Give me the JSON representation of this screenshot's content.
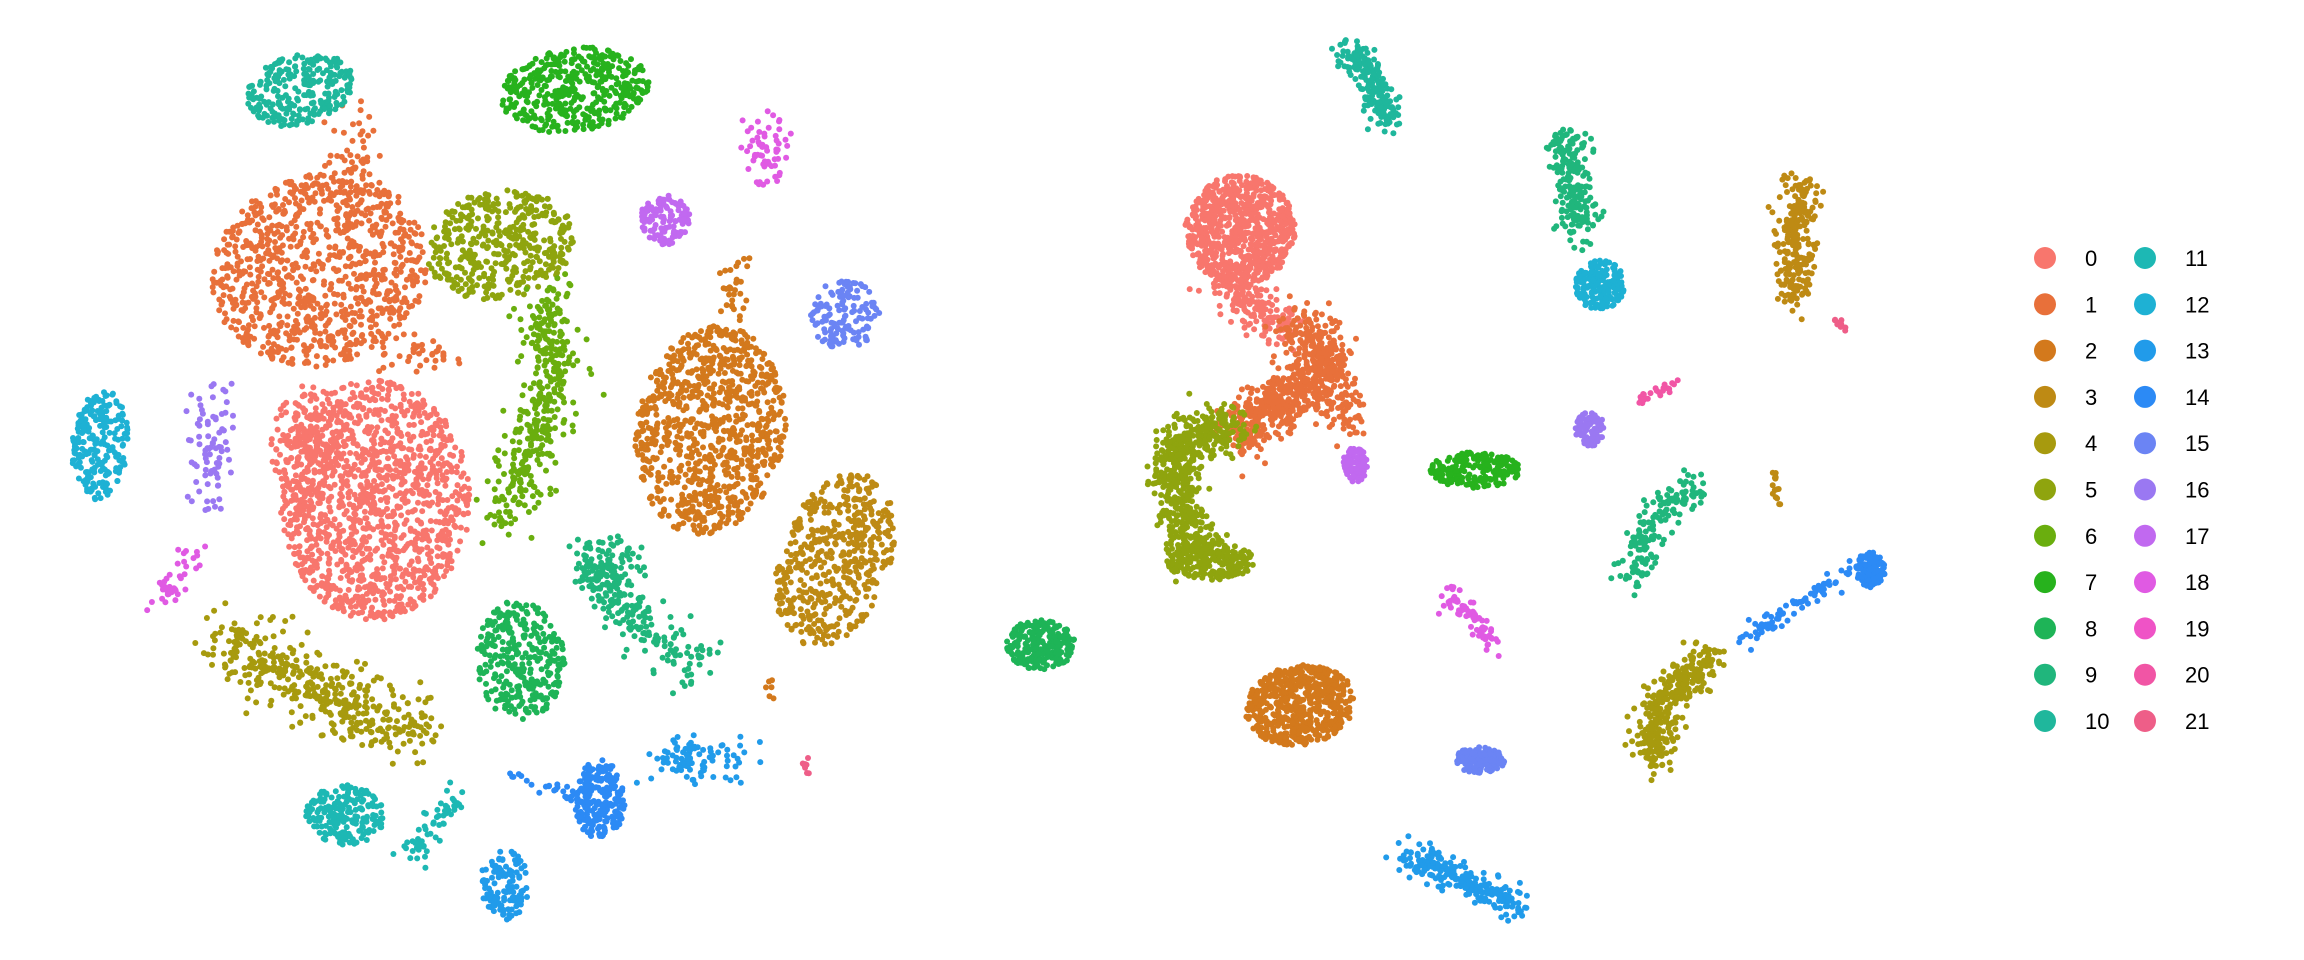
{
  "chart_data": [
    {
      "type": "scatter",
      "title": "",
      "xlabel": "",
      "ylabel": "",
      "grid": false,
      "axes_visible": false,
      "description_role": "embedding-left"
    },
    {
      "type": "scatter",
      "title": "",
      "xlabel": "",
      "ylabel": "",
      "grid": false,
      "axes_visible": false,
      "description_role": "embedding-right"
    }
  ],
  "legend": {
    "placement": "right",
    "columns": 2,
    "entries": [
      {
        "label": "0",
        "color": "#F8766D"
      },
      {
        "label": "1",
        "color": "#E58700"
      },
      {
        "label": "2",
        "color": "#C99800"
      },
      {
        "label": "3",
        "color": "#A3A500"
      },
      {
        "label": "4",
        "color": "#6BB100"
      },
      {
        "label": "5",
        "color": "#00BA38"
      },
      {
        "label": "6",
        "color": "#00BF7D"
      },
      {
        "label": "7",
        "color": "#00C0AF"
      },
      {
        "label": "8",
        "color": "#00BCD8"
      },
      {
        "label": "9",
        "color": "#00B0F6"
      },
      {
        "label": "10",
        "color": "#619CFF"
      },
      {
        "label": "11",
        "color": "#B983FF"
      },
      {
        "label": "12",
        "color": "#E76BF3"
      },
      {
        "label": "13",
        "color": "#FD61D1"
      },
      {
        "label": "14",
        "color": "#FF67A4"
      },
      {
        "label": "15",
        "color": "#F8766D"
      },
      {
        "label": "16",
        "color": "#E58700"
      },
      {
        "label": "17",
        "color": "#C99800"
      },
      {
        "label": "18",
        "color": "#A3A500"
      },
      {
        "label": "19",
        "color": "#6BB100"
      },
      {
        "label": "20",
        "color": "#00BA38"
      },
      {
        "label": "21",
        "color": "#00BF7D"
      }
    ]
  },
  "cluster_colors": [
    "#F8766D",
    "#E8703A",
    "#D3791C",
    "#BE8A14",
    "#A79A0E",
    "#8FA40E",
    "#6AAE0E",
    "#27B21D",
    "#1EB457",
    "#20B67C",
    "#1FB79C",
    "#1DB8B4",
    "#1EB1D4",
    "#219BEA",
    "#2C8AF5",
    "#6B84F4",
    "#9A78F2",
    "#C169F0",
    "#E05AE3",
    "#EF53C6",
    "#F155A5",
    "#EE5E88"
  ]
}
